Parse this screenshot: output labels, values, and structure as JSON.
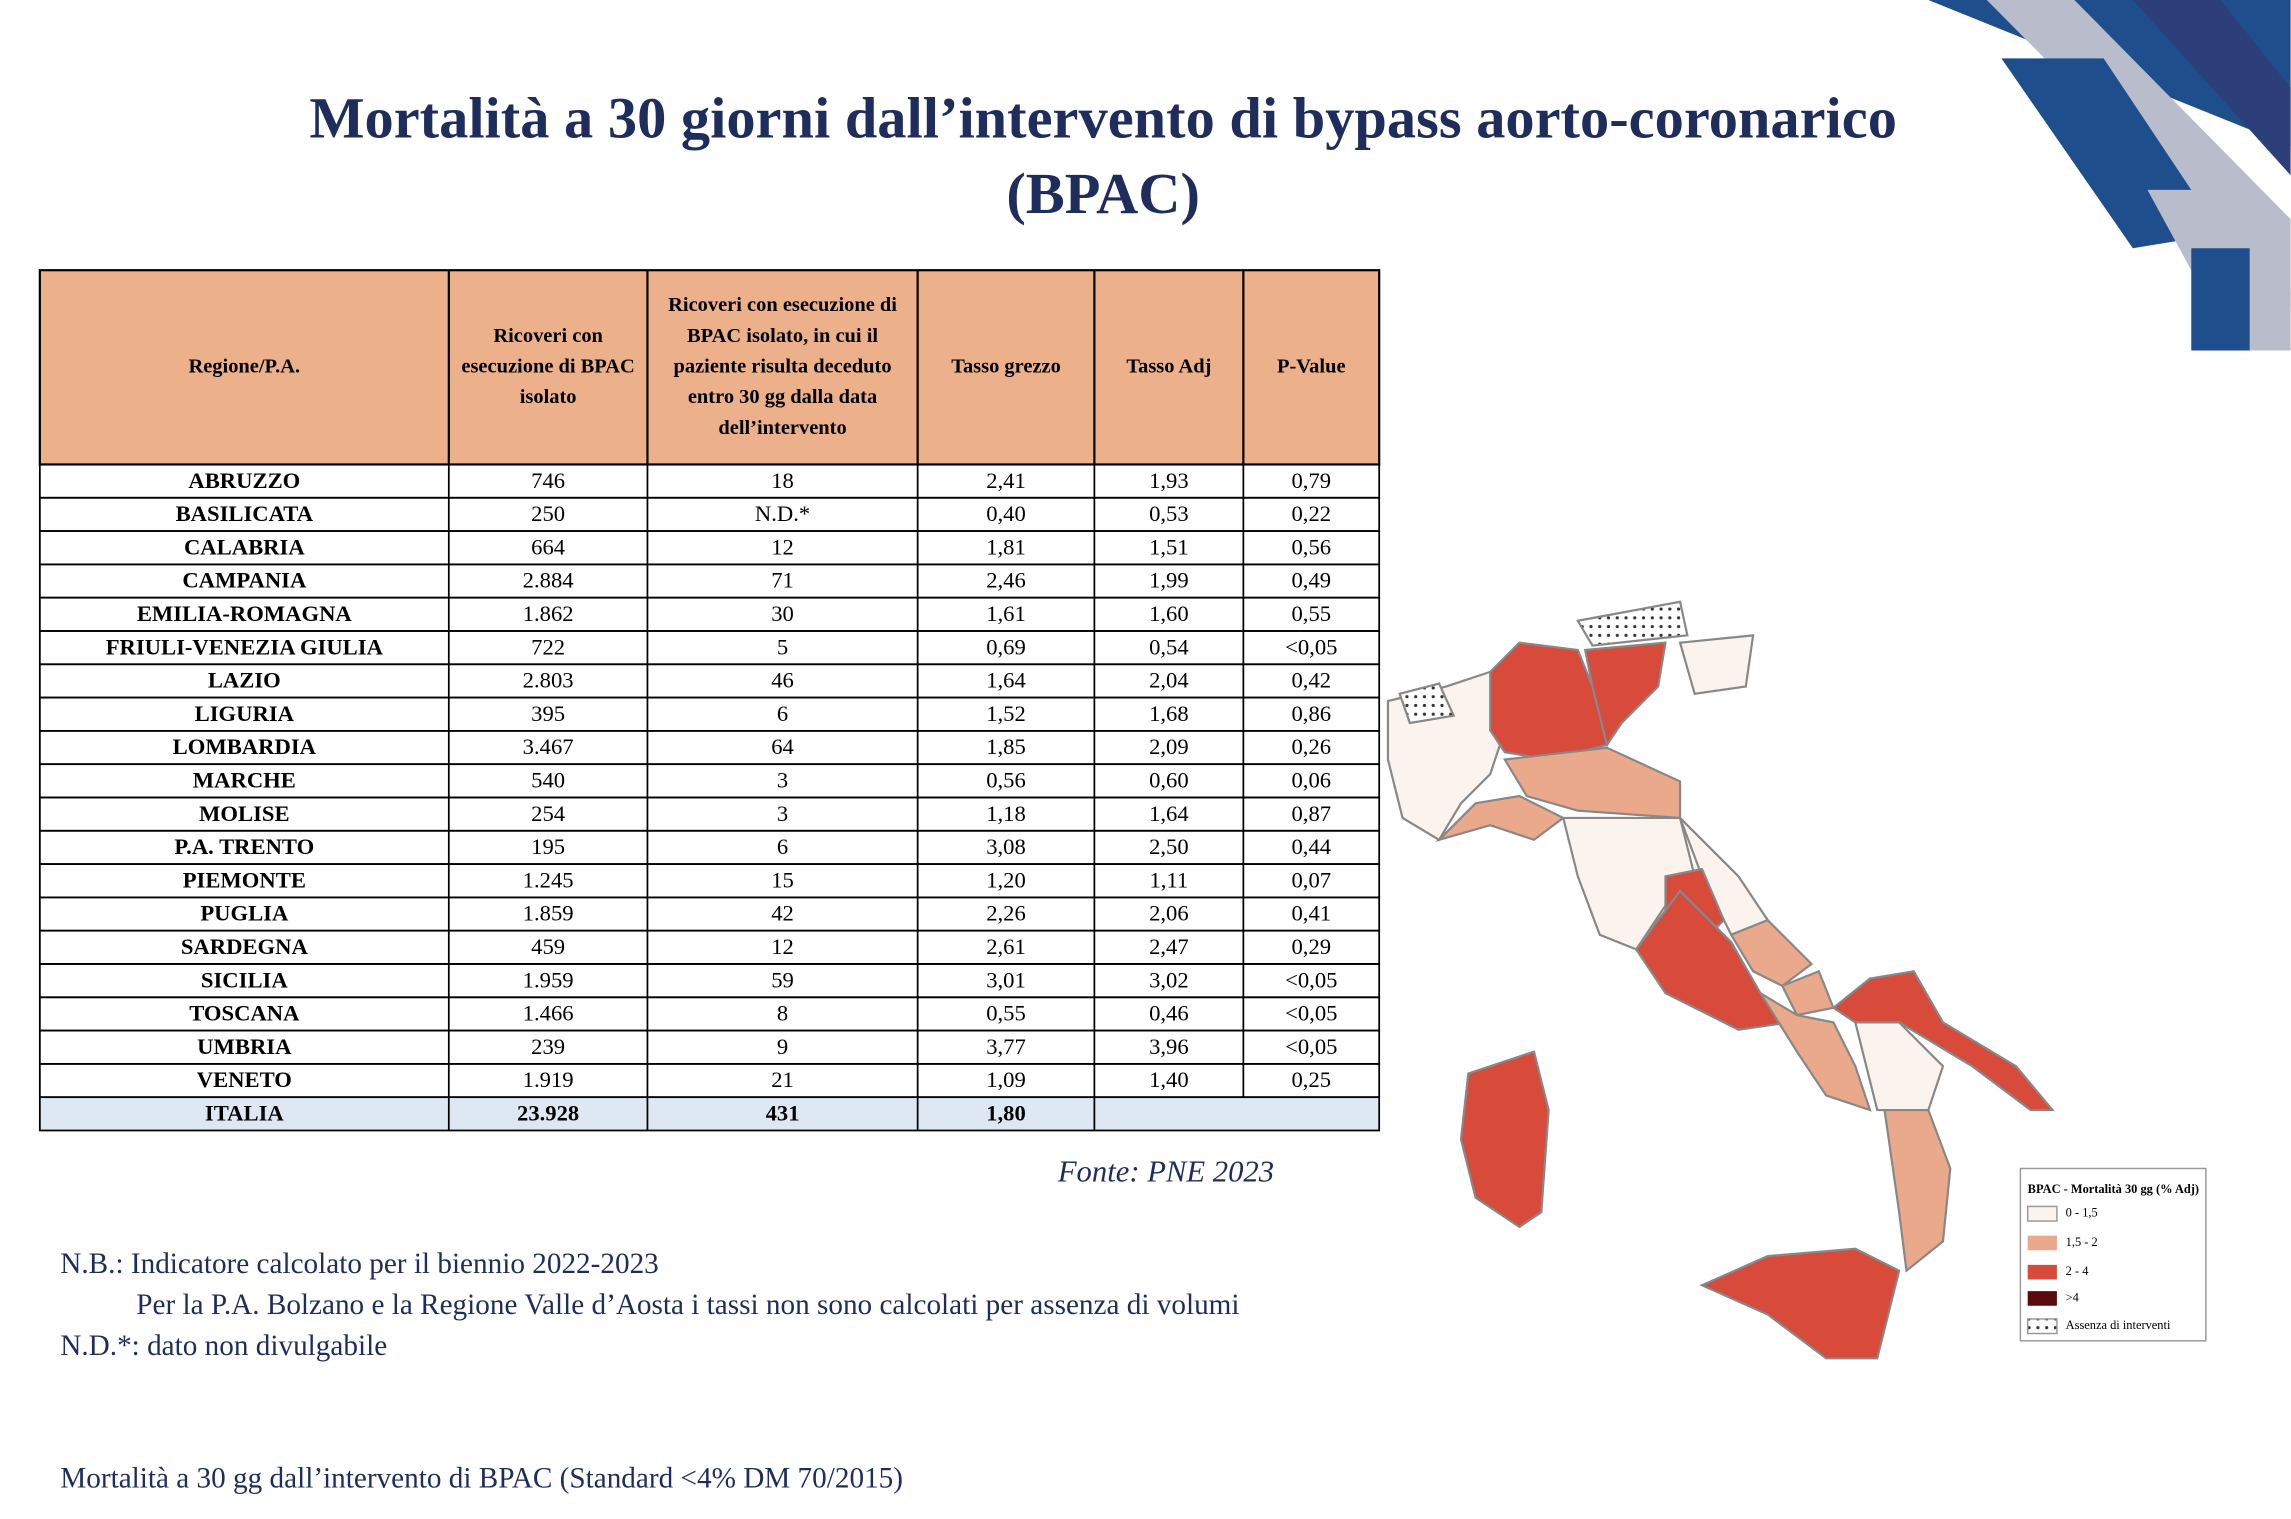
{
  "header": {
    "title": "Mortalità a 30 giorni dall’intervento di bypass aorto-coronarico (BPAC)"
  },
  "table": {
    "columns": [
      "Regione/P.A.",
      "Ricoveri con esecuzione di BPAC isolato",
      "Ricoveri con esecuzione di BPAC isolato, in cui il paziente risulta deceduto entro 30 gg dalla data dell’intervento",
      "Tasso grezzo",
      "Tasso Adj",
      "P-Value"
    ],
    "rows": [
      [
        "ABRUZZO",
        "746",
        "18",
        "2,41",
        "1,93",
        "0,79"
      ],
      [
        "BASILICATA",
        "250",
        "N.D.*",
        "0,40",
        "0,53",
        "0,22"
      ],
      [
        "CALABRIA",
        "664",
        "12",
        "1,81",
        "1,51",
        "0,56"
      ],
      [
        "CAMPANIA",
        "2.884",
        "71",
        "2,46",
        "1,99",
        "0,49"
      ],
      [
        "EMILIA-ROMAGNA",
        "1.862",
        "30",
        "1,61",
        "1,60",
        "0,55"
      ],
      [
        "FRIULI-VENEZIA GIULIA",
        "722",
        "5",
        "0,69",
        "0,54",
        "<0,05"
      ],
      [
        "LAZIO",
        "2.803",
        "46",
        "1,64",
        "2,04",
        "0,42"
      ],
      [
        "LIGURIA",
        "395",
        "6",
        "1,52",
        "1,68",
        "0,86"
      ],
      [
        "LOMBARDIA",
        "3.467",
        "64",
        "1,85",
        "2,09",
        "0,26"
      ],
      [
        "MARCHE",
        "540",
        "3",
        "0,56",
        "0,60",
        "0,06"
      ],
      [
        "MOLISE",
        "254",
        "3",
        "1,18",
        "1,64",
        "0,87"
      ],
      [
        "P.A. TRENTO",
        "195",
        "6",
        "3,08",
        "2,50",
        "0,44"
      ],
      [
        "PIEMONTE",
        "1.245",
        "15",
        "1,20",
        "1,11",
        "0,07"
      ],
      [
        "PUGLIA",
        "1.859",
        "42",
        "2,26",
        "2,06",
        "0,41"
      ],
      [
        "SARDEGNA",
        "459",
        "12",
        "2,61",
        "2,47",
        "0,29"
      ],
      [
        "SICILIA",
        "1.959",
        "59",
        "3,01",
        "3,02",
        "<0,05"
      ],
      [
        "TOSCANA",
        "1.466",
        "8",
        "0,55",
        "0,46",
        "<0,05"
      ],
      [
        "UMBRIA",
        "239",
        "9",
        "3,77",
        "3,96",
        "<0,05"
      ],
      [
        "VENETO",
        "1.919",
        "21",
        "1,09",
        "1,40",
        "0,25"
      ]
    ],
    "total": [
      "ITALIA",
      "23.928",
      "431",
      "1,80"
    ]
  },
  "source": "Fonte: PNE 2023",
  "legend": {
    "title": "BPAC - Mortalità 30 gg (% Adj)",
    "items": [
      "0 - 1,5",
      "1,5 - 2",
      "2 - 4",
      ">4",
      "Assenza di interventi"
    ]
  },
  "notes": [
    "N.B.: Indicatore calcolato per il biennio 2022-2023",
    "Per la P.A. Bolzano e la Regione Valle d’Aosta i tassi non sono calcolati per assenza di volumi",
    "N.D.*: dato non divulgabile"
  ],
  "footer": "Mortalità a 30 gg dall’intervento di BPAC (Standard <4% DM 70/2015)"
}
